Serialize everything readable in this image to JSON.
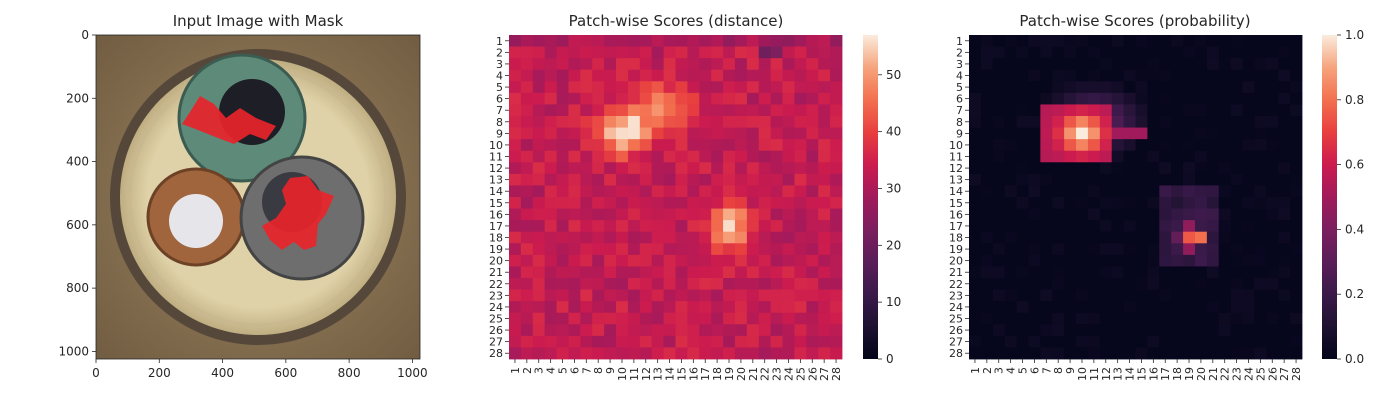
{
  "chart_data": [
    {
      "type": "image",
      "title": "Input Image with Mask",
      "xlim": [
        0,
        1024
      ],
      "ylim": [
        1024,
        0
      ],
      "xticks": [
        "0",
        "200",
        "400",
        "600",
        "800",
        "1000"
      ],
      "yticks": [
        "0",
        "200",
        "400",
        "600",
        "800",
        "1000"
      ],
      "content": "photo of cable cross-section (three insulated conductors in a sheath) with red anomaly mask overlay",
      "colors": {
        "background": "#8b7355",
        "sheath": "#d8c8a0",
        "green_core": "#5e8a7a",
        "brown_core": "#a0653d",
        "grey_core": "#6e6e6e",
        "mask": "#e8242a"
      }
    },
    {
      "type": "heatmap",
      "title": "Patch-wise Scores (distance)",
      "grid": [
        28,
        28
      ],
      "xticks": [
        "1",
        "2",
        "3",
        "4",
        "5",
        "6",
        "7",
        "8",
        "9",
        "10",
        "11",
        "12",
        "13",
        "14",
        "15",
        "16",
        "17",
        "18",
        "19",
        "20",
        "21",
        "22",
        "23",
        "24",
        "25",
        "26",
        "27",
        "28"
      ],
      "yticks": [
        "1",
        "2",
        "3",
        "4",
        "5",
        "6",
        "7",
        "8",
        "9",
        "10",
        "11",
        "12",
        "13",
        "14",
        "15",
        "16",
        "17",
        "18",
        "19",
        "20",
        "21",
        "22",
        "23",
        "24",
        "25",
        "26",
        "27",
        "28"
      ],
      "colorbar": {
        "range": [
          0,
          57
        ],
        "ticks": [
          "0",
          "10",
          "20",
          "30",
          "40",
          "50"
        ]
      },
      "baseline": 33,
      "hotspots": [
        {
          "row": 9,
          "col": 10,
          "peak": 57
        },
        {
          "row": 7,
          "col": 13,
          "peak": 46
        },
        {
          "row": 17,
          "col": 19,
          "peak": 55
        }
      ]
    },
    {
      "type": "heatmap",
      "title": "Patch-wise Scores (probability)",
      "grid": [
        28,
        28
      ],
      "xticks": [
        "1",
        "2",
        "3",
        "4",
        "5",
        "6",
        "7",
        "8",
        "9",
        "10",
        "11",
        "12",
        "13",
        "14",
        "15",
        "16",
        "17",
        "18",
        "19",
        "20",
        "21",
        "22",
        "23",
        "24",
        "25",
        "26",
        "27",
        "28"
      ],
      "yticks": [
        "1",
        "2",
        "3",
        "4",
        "5",
        "6",
        "7",
        "8",
        "9",
        "10",
        "11",
        "12",
        "13",
        "14",
        "15",
        "16",
        "17",
        "18",
        "19",
        "20",
        "21",
        "22",
        "23",
        "24",
        "25",
        "26",
        "27",
        "28"
      ],
      "colorbar": {
        "range": [
          0.0,
          1.0
        ],
        "ticks": [
          "0.0",
          "0.2",
          "0.4",
          "0.6",
          "0.8",
          "1.0"
        ]
      },
      "baseline": 0.0,
      "hotspots": [
        {
          "row": 9,
          "col": 10,
          "peak": 1.0
        },
        {
          "row": 18,
          "col": 19,
          "peak": 0.75
        }
      ]
    }
  ]
}
